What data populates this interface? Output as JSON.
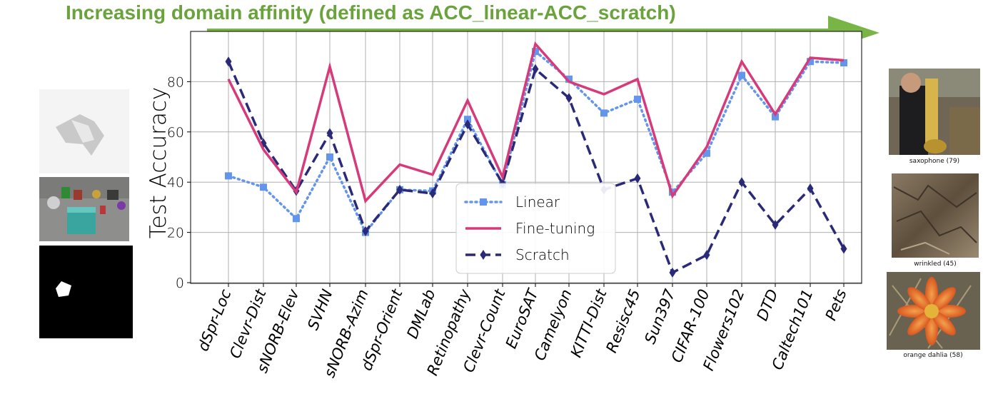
{
  "banner": {
    "title": "Increasing domain affinity (defined as ACC_linear-ACC_scratch)"
  },
  "left_examples": [
    {
      "icon": "dsprites-shape-image"
    },
    {
      "icon": "clevr-render-image"
    },
    {
      "icon": "dsprites-mask-image"
    }
  ],
  "right_examples": [
    {
      "caption": "saxophone (79)",
      "icon": "saxophone-photo"
    },
    {
      "caption": "wrinkled (45)",
      "icon": "wrinkled-texture-photo"
    },
    {
      "caption": "orange dahlia (58)",
      "icon": "orange-dahlia-photo"
    }
  ],
  "chart_data": {
    "type": "line",
    "ylabel": "Test Accuracy",
    "xlabel": "",
    "ylim": [
      0,
      100
    ],
    "yticks": [
      0,
      20,
      40,
      60,
      80
    ],
    "grid": true,
    "legend_position": "lower-center",
    "categories": [
      "dSpr-Loc",
      "Clevr-Dist",
      "sNORB-Elev",
      "SVHN",
      "sNORB-Azim",
      "dSpr-Orient",
      "DMLab",
      "Retinopathy",
      "Clevr-Count",
      "EuroSAT",
      "Camelyon",
      "KITTI-Dist",
      "Resisc45",
      "Sun397",
      "CIFAR-100",
      "Flowers102",
      "DTD",
      "Caltech101",
      "Pets"
    ],
    "series": [
      {
        "name": "Linear",
        "color": "#6495ed",
        "style": "dotted",
        "marker": "square",
        "values": [
          42.5,
          38,
          25.5,
          50,
          20,
          37,
          36.5,
          65,
          39,
          92,
          81,
          67.5,
          73,
          36,
          51.5,
          82.5,
          66,
          88,
          87.5
        ]
      },
      {
        "name": "Fine-tuning",
        "color": "#d63a7a",
        "style": "solid",
        "marker": "none",
        "values": [
          81,
          53,
          36,
          86,
          32.5,
          47,
          43,
          72.5,
          42,
          95,
          80,
          75,
          81,
          34.5,
          54,
          88,
          67,
          89.5,
          88.5
        ]
      },
      {
        "name": "Scratch",
        "color": "#2b2a78",
        "style": "dashed",
        "marker": "diamond",
        "values": [
          88,
          55.5,
          36.5,
          59.5,
          20.5,
          37,
          35.5,
          63,
          39.5,
          85,
          73.5,
          37,
          41.5,
          4,
          11,
          40,
          23,
          37.5,
          13.5
        ]
      }
    ]
  }
}
